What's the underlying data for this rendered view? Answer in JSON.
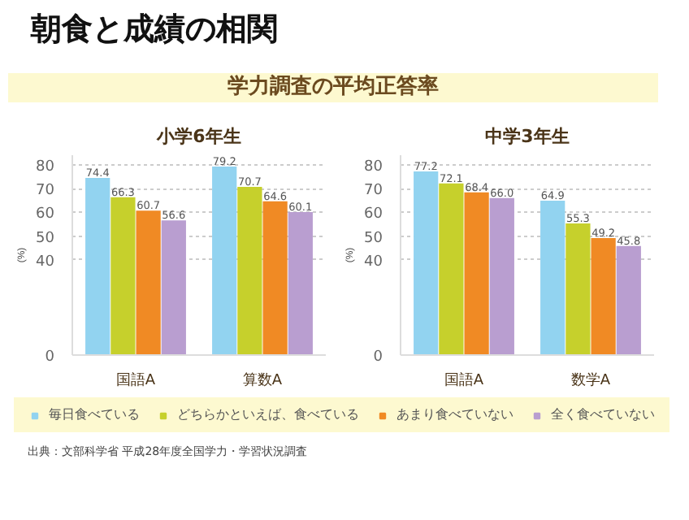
{
  "chart_data": [
    {
      "type": "bar",
      "title": "小学6年生",
      "subtitle": "学力調査の平均正答率",
      "ylabel": "(%)",
      "categories": [
        "国語A",
        "算数A"
      ],
      "series": [
        {
          "name": "毎日食べている",
          "color": "#92d3f0",
          "values": [
            74.4,
            79.2
          ]
        },
        {
          "name": "どちらかといえば、食べている",
          "color": "#c6d02c",
          "values": [
            66.3,
            70.7
          ]
        },
        {
          "name": "あまり食べていない",
          "color": "#f08a24",
          "values": [
            60.7,
            64.6
          ]
        },
        {
          "name": "全く食べていない",
          "color": "#b99ed0",
          "values": [
            56.6,
            60.1
          ]
        }
      ],
      "ylim": [
        0,
        84
      ],
      "yticks": [
        0,
        40,
        50,
        60,
        70,
        80
      ],
      "grid": "y",
      "data_labels": true,
      "legend": "bottom",
      "annotations": [
        "朝食と成績の相関",
        "出典：文部科学省 平成28年度全国学力・学習状況調査"
      ]
    },
    {
      "type": "bar",
      "title": "中学3年生",
      "ylabel": "(%)",
      "categories": [
        "国語A",
        "数学A"
      ],
      "series": [
        {
          "color": "#92d3f0",
          "values": [
            77.2,
            64.9
          ],
          "value_labels": [
            "77.2",
            "64.9"
          ]
        },
        {
          "color": "#c6d02c",
          "values": [
            72.1,
            55.3
          ],
          "value_labels": [
            "72.1",
            "55.3"
          ]
        },
        {
          "color": "#f08a24",
          "values": [
            68.4,
            49.2
          ],
          "value_labels": [
            "68.4",
            "49.2"
          ]
        },
        {
          "color": "#b99ed0",
          "values": [
            66.0,
            45.8
          ],
          "value_labels": [
            "66.0",
            "45.8"
          ]
        }
      ],
      "ylim": [
        0,
        84
      ],
      "yticks": [
        0,
        40,
        50,
        60,
        70,
        80
      ],
      "grid": "y"
    }
  ]
}
